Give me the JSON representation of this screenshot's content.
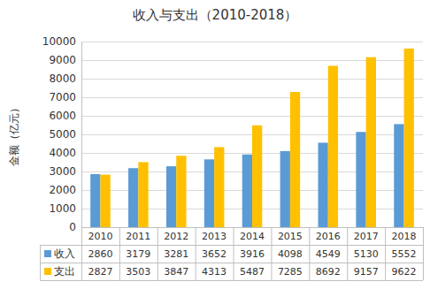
{
  "chart_data": {
    "type": "bar",
    "title": "收入与支出（2010-2018）",
    "y_label": "金额（亿元）",
    "categories": [
      "2010",
      "2011",
      "2012",
      "2013",
      "2014",
      "2015",
      "2016",
      "2017",
      "2018"
    ],
    "series": [
      {
        "name": "收入",
        "color": "#5B9BD5",
        "values": [
          2860,
          3179,
          3281,
          3652,
          3916,
          4098,
          4549,
          5130,
          5552
        ]
      },
      {
        "name": "支出",
        "color": "#FFC000",
        "values": [
          2827,
          3503,
          3847,
          4313,
          5487,
          7285,
          8692,
          9157,
          9622
        ]
      }
    ],
    "ylim": [
      0,
      10000
    ],
    "yticks": [
      0,
      1000,
      2000,
      3000,
      4000,
      5000,
      6000,
      7000,
      8000,
      9000,
      10000
    ],
    "grid": true,
    "data_labels": true
  }
}
